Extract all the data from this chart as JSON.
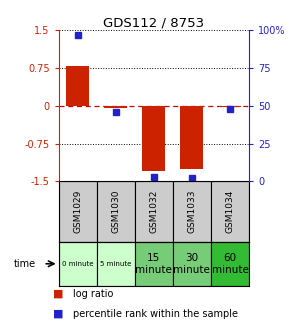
{
  "title": "GDS112 / 8753",
  "samples": [
    "GSM1029",
    "GSM1030",
    "GSM1032",
    "GSM1033",
    "GSM1034"
  ],
  "log_ratios": [
    0.8,
    -0.05,
    -1.3,
    -1.25,
    -0.02
  ],
  "percentile_ranks": [
    97,
    46,
    3,
    2,
    48
  ],
  "time_labels": [
    "0 minute",
    "5 minute",
    "15\nminute",
    "30\nminute",
    "60\nminute"
  ],
  "time_colors": [
    "#ccffcc",
    "#ccffcc",
    "#77cc77",
    "#77cc77",
    "#33bb33"
  ],
  "time_small": [
    true,
    true,
    false,
    false,
    false
  ],
  "ylim": [
    -1.5,
    1.5
  ],
  "y_left_ticks": [
    -1.5,
    -0.75,
    0,
    0.75,
    1.5
  ],
  "y_right_ticks": [
    0,
    25,
    50,
    75,
    100
  ],
  "bar_color": "#cc2200",
  "dot_color": "#2222cc",
  "grid_color": "#000000",
  "zero_line_color": "#cc0000",
  "bg_color": "#ffffff",
  "sample_header_color": "#cccccc",
  "left_axis_color": "#cc2200",
  "right_axis_color": "#2222cc"
}
